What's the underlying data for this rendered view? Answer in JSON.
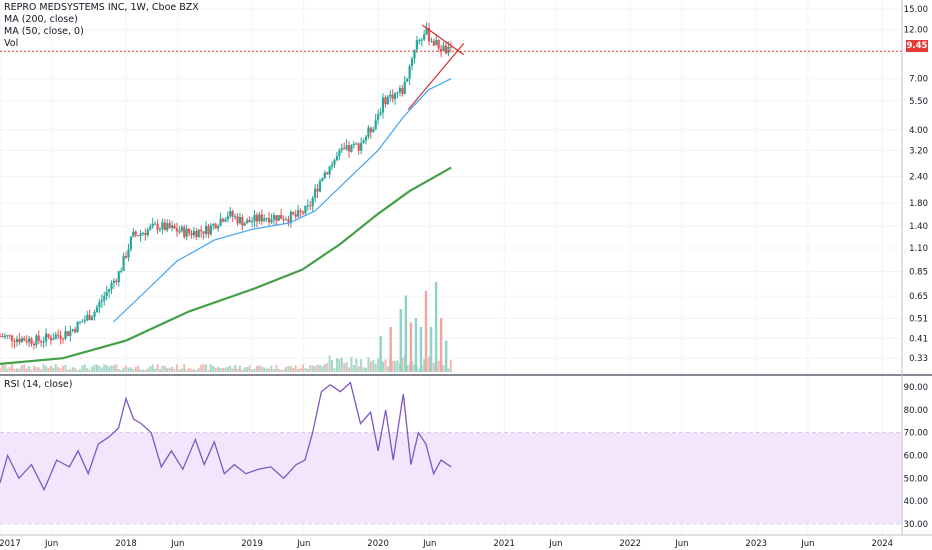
{
  "legend": {
    "main_title": "REPRO MEDSYSTEMS INC, 1W, Cboe BZX",
    "ma200": "MA (200, close)",
    "ma50": "MA (50, close, 0)",
    "vol": "Vol",
    "rsi": "RSI (14, close)"
  },
  "colors": {
    "up": "#26a69a",
    "down": "#ef5350",
    "ma200": "#43a047",
    "ma50": "#42a5f5",
    "rsi": "#7e57c2",
    "rsi_band": "#f3e5fb",
    "price_line": "#e53935",
    "trendline": "#d32f2f"
  },
  "current_price": "9.45",
  "chart_data": [
    {
      "type": "candlestick",
      "title": "REPRO MEDSYSTEMS INC, 1W, Cboe BZX",
      "log_scale": true,
      "y_ticks": [
        "15.00",
        "12.00",
        "9.45",
        "7.00",
        "5.50",
        "4.00",
        "3.20",
        "2.40",
        "1.80",
        "1.40",
        "1.10",
        "0.85",
        "0.65",
        "0.51",
        "0.41",
        "0.33"
      ],
      "x_ticks": [
        "2017",
        "Jun",
        "2018",
        "Jun",
        "2019",
        "Jun",
        "2020",
        "Jun",
        "2021",
        "Jun",
        "2022",
        "Jun",
        "2023",
        "Jun",
        "2024"
      ],
      "current_price": 9.45,
      "anchors": [
        [
          2017.0,
          0.42
        ],
        [
          2017.3,
          0.4
        ],
        [
          2017.55,
          0.44
        ],
        [
          2017.75,
          0.55
        ],
        [
          2017.95,
          0.85
        ],
        [
          2018.05,
          1.25
        ],
        [
          2018.25,
          1.4
        ],
        [
          2018.5,
          1.3
        ],
        [
          2018.65,
          1.35
        ],
        [
          2018.8,
          1.6
        ],
        [
          2018.95,
          1.45
        ],
        [
          2019.1,
          1.55
        ],
        [
          2019.35,
          1.55
        ],
        [
          2019.45,
          1.7
        ],
        [
          2019.55,
          2.4
        ],
        [
          2019.7,
          3.1
        ],
        [
          2019.85,
          3.4
        ],
        [
          2019.95,
          4.1
        ],
        [
          2020.05,
          5.6
        ],
        [
          2020.2,
          6.2
        ],
        [
          2020.3,
          10.5
        ],
        [
          2020.38,
          11.6
        ],
        [
          2020.45,
          10.3
        ],
        [
          2020.55,
          9.4
        ],
        [
          2020.58,
          9.45
        ]
      ]
    },
    {
      "type": "line",
      "name": "MA (200, close)",
      "x": [
        2017.0,
        2017.5,
        2018.0,
        2018.5,
        2019.0,
        2019.4,
        2019.7,
        2020.0,
        2020.25,
        2020.58
      ],
      "values": [
        0.31,
        0.33,
        0.4,
        0.55,
        0.7,
        0.87,
        1.15,
        1.6,
        2.05,
        2.65
      ]
    },
    {
      "type": "line",
      "name": "MA (50, close, 0)",
      "x": [
        2017.9,
        2018.15,
        2018.4,
        2018.7,
        2019.0,
        2019.3,
        2019.5,
        2019.75,
        2020.0,
        2020.2,
        2020.4,
        2020.58
      ],
      "values": [
        0.49,
        0.68,
        0.95,
        1.2,
        1.35,
        1.45,
        1.65,
        2.3,
        3.2,
        4.6,
        6.2,
        7.0
      ]
    },
    {
      "type": "line",
      "name": "RSI (14, close)",
      "y_ticks": [
        "90.00",
        "80.00",
        "70.00",
        "60.00",
        "50.00",
        "40.00",
        "30.00"
      ],
      "band": [
        30,
        70
      ],
      "x": [
        2017.0,
        2017.06,
        2017.15,
        2017.25,
        2017.35,
        2017.45,
        2017.55,
        2017.62,
        2017.7,
        2017.78,
        2017.86,
        2017.94,
        2018.0,
        2018.06,
        2018.12,
        2018.2,
        2018.28,
        2018.36,
        2018.45,
        2018.55,
        2018.62,
        2018.7,
        2018.78,
        2018.86,
        2018.95,
        2019.05,
        2019.15,
        2019.25,
        2019.35,
        2019.42,
        2019.48,
        2019.55,
        2019.62,
        2019.7,
        2019.78,
        2019.86,
        2019.94,
        2020.0,
        2020.06,
        2020.12,
        2020.2,
        2020.26,
        2020.32,
        2020.38,
        2020.44,
        2020.5,
        2020.58
      ],
      "values": [
        48,
        60,
        50,
        56,
        45,
        58,
        55,
        62,
        52,
        65,
        68,
        72,
        85,
        76,
        74,
        70,
        55,
        62,
        54,
        67,
        56,
        66,
        52,
        56,
        52,
        54,
        55,
        50,
        56,
        58,
        70,
        88,
        91,
        88,
        92,
        74,
        79,
        62,
        80,
        58,
        87,
        56,
        70,
        65,
        52,
        58,
        55
      ]
    },
    {
      "type": "bar",
      "name": "Vol",
      "x": [
        2020.02,
        2020.1,
        2020.18,
        2020.22,
        2020.26,
        2020.3,
        2020.34,
        2020.38,
        2020.42,
        2020.46,
        2020.5,
        2020.54
      ],
      "values": [
        0.4,
        0.5,
        0.7,
        0.85,
        0.55,
        0.6,
        0.5,
        0.9,
        0.5,
        1.0,
        0.6,
        0.35
      ]
    }
  ]
}
